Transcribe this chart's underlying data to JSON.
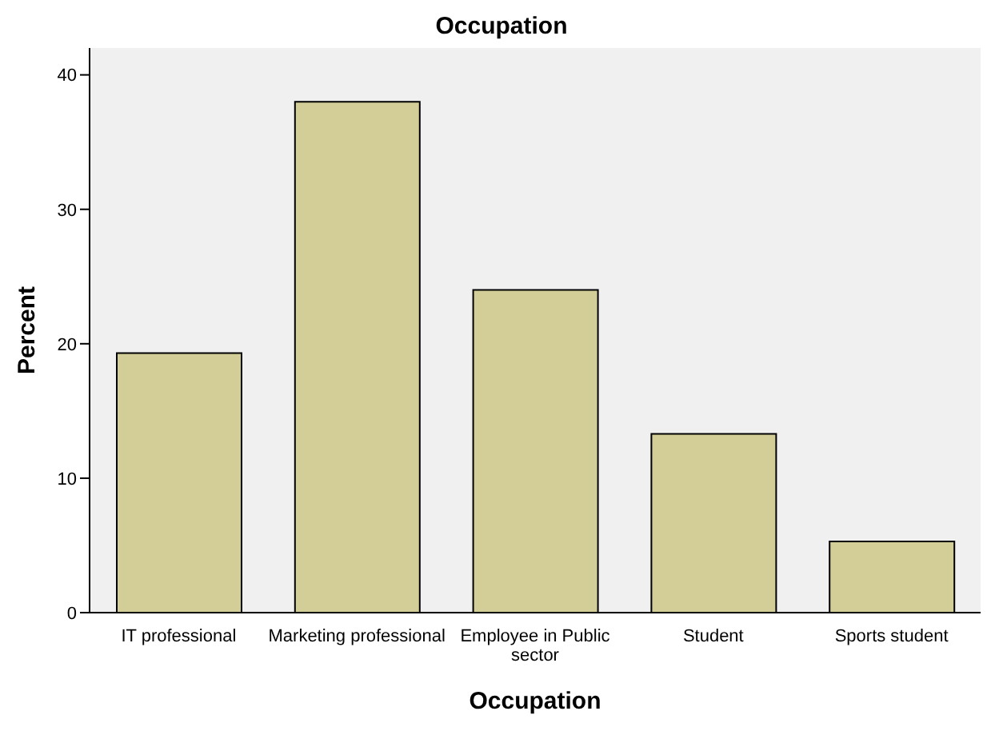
{
  "chart_data": {
    "type": "bar",
    "title": "Occupation",
    "xlabel": "Occupation",
    "ylabel": "Percent",
    "categories": [
      "IT professional",
      "Marketing professional",
      "Employee in Public sector",
      "Student",
      "Sports student"
    ],
    "values": [
      19.3,
      38.0,
      24.0,
      13.3,
      5.3
    ],
    "color": "#d3ce97",
    "ylim": [
      0,
      42
    ],
    "yticks": [
      0,
      10,
      20,
      30,
      40
    ],
    "grid": false,
    "legend": false
  }
}
